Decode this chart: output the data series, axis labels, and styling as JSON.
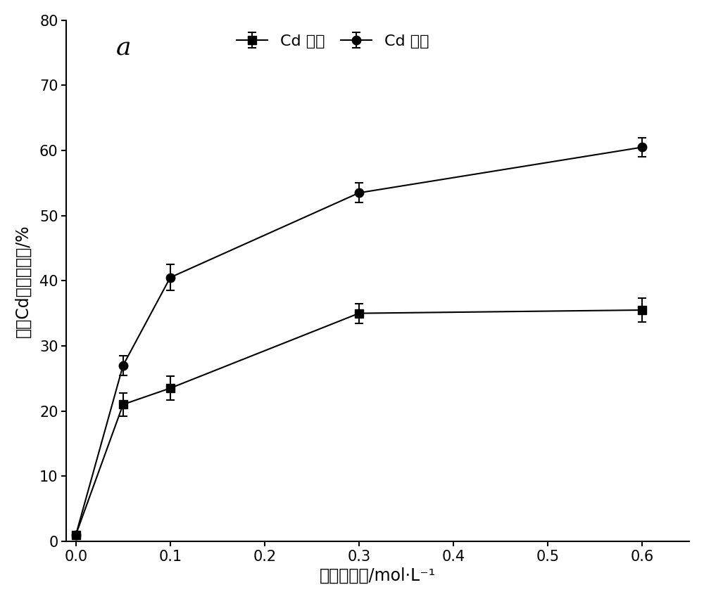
{
  "title_label": "a",
  "xlabel": "柠橬酸浓度/mol·L⁻¹",
  "ylabel": "土壹Cd增溶去除率/%",
  "xlim": [
    -0.01,
    0.65
  ],
  "ylim": [
    0,
    80
  ],
  "xticks": [
    0.0,
    0.1,
    0.2,
    0.3,
    0.4,
    0.5,
    0.6
  ],
  "yticks": [
    0,
    10,
    20,
    30,
    40,
    50,
    60,
    70,
    80
  ],
  "series": [
    {
      "label": "Cd 静置",
      "x": [
        0,
        0.05,
        0.1,
        0.3,
        0.6
      ],
      "y": [
        1.0,
        21.0,
        23.5,
        35.0,
        35.5
      ],
      "yerr": [
        0.3,
        1.8,
        1.8,
        1.5,
        1.8
      ],
      "marker": "s",
      "color": "#000000",
      "markersize": 8,
      "linewidth": 1.5
    },
    {
      "label": "Cd 振荡",
      "x": [
        0,
        0.05,
        0.1,
        0.3,
        0.6
      ],
      "y": [
        1.0,
        27.0,
        40.5,
        53.5,
        60.5
      ],
      "yerr": [
        0.3,
        1.5,
        2.0,
        1.5,
        1.5
      ],
      "marker": "o",
      "color": "#000000",
      "markersize": 9,
      "linewidth": 1.5
    }
  ],
  "background_color": "#ffffff",
  "font_size_label": 17,
  "font_size_tick": 15,
  "font_size_title": 26,
  "font_size_legend": 16
}
